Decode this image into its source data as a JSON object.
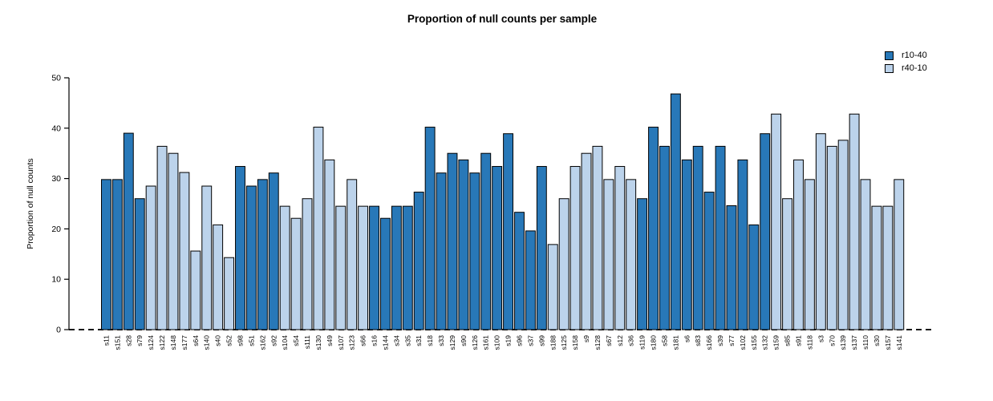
{
  "chart_data": {
    "type": "bar",
    "title": "Proportion of null counts per sample",
    "xlabel": "",
    "ylabel": "Proportion of null counts",
    "ylim": [
      0,
      50
    ],
    "yticks": [
      0,
      10,
      20,
      30,
      40,
      50
    ],
    "grid": false,
    "legend_position": "top-right",
    "baseline_style": "dashed",
    "legend": [
      {
        "label": "r10-40",
        "color": "#2878B8"
      },
      {
        "label": "r40-10",
        "color": "#BCD3EB"
      }
    ],
    "categories": [
      "s11",
      "s151",
      "s28",
      "s79",
      "s124",
      "s122",
      "s148",
      "s177",
      "s64",
      "s140",
      "s40",
      "s52",
      "s98",
      "s51",
      "s162",
      "s92",
      "s104",
      "s54",
      "s111",
      "s130",
      "s49",
      "s107",
      "s123",
      "s66",
      "s16",
      "s144",
      "s34",
      "s35",
      "s31",
      "s18",
      "s33",
      "s129",
      "s90",
      "s126",
      "s161",
      "s100",
      "s19",
      "s96",
      "s37",
      "s99",
      "s188",
      "s125",
      "s158",
      "s9",
      "s128",
      "s67",
      "s12",
      "s36",
      "s119",
      "s180",
      "s58",
      "s181",
      "s6",
      "s83",
      "s166",
      "s39",
      "s77",
      "s102",
      "s155",
      "s132",
      "s159",
      "s85",
      "s91",
      "s118",
      "s3",
      "s70",
      "s139",
      "s137",
      "s110",
      "s30",
      "s157",
      "s141"
    ],
    "groups": [
      "r10-40",
      "r10-40",
      "r10-40",
      "r10-40",
      "r40-10",
      "r40-10",
      "r40-10",
      "r40-10",
      "r40-10",
      "r40-10",
      "r40-10",
      "r40-10",
      "r10-40",
      "r10-40",
      "r10-40",
      "r10-40",
      "r40-10",
      "r40-10",
      "r40-10",
      "r40-10",
      "r40-10",
      "r40-10",
      "r40-10",
      "r40-10",
      "r10-40",
      "r10-40",
      "r10-40",
      "r10-40",
      "r10-40",
      "r10-40",
      "r10-40",
      "r10-40",
      "r10-40",
      "r10-40",
      "r10-40",
      "r10-40",
      "r10-40",
      "r10-40",
      "r10-40",
      "r10-40",
      "r40-10",
      "r40-10",
      "r40-10",
      "r40-10",
      "r40-10",
      "r40-10",
      "r40-10",
      "r40-10",
      "r10-40",
      "r10-40",
      "r10-40",
      "r10-40",
      "r10-40",
      "r10-40",
      "r10-40",
      "r10-40",
      "r10-40",
      "r10-40",
      "r10-40",
      "r10-40",
      "r40-10",
      "r40-10",
      "r40-10",
      "r40-10",
      "r40-10",
      "r40-10",
      "r40-10",
      "r40-10",
      "r40-10",
      "r40-10",
      "r40-10",
      "r40-10"
    ],
    "values": [
      29.8,
      29.8,
      39.0,
      26.0,
      28.5,
      36.4,
      35.0,
      31.2,
      15.6,
      28.5,
      20.8,
      14.3,
      32.4,
      28.5,
      29.8,
      31.1,
      24.5,
      22.1,
      26.0,
      40.2,
      33.7,
      24.5,
      29.8,
      24.5,
      24.5,
      22.1,
      24.5,
      24.5,
      27.3,
      40.2,
      31.1,
      35.0,
      33.7,
      31.1,
      35.0,
      32.4,
      38.9,
      23.3,
      19.6,
      32.4,
      16.9,
      26.0,
      32.4,
      35.0,
      36.4,
      29.8,
      32.4,
      29.8,
      26.0,
      40.2,
      36.4,
      46.8,
      33.7,
      36.4,
      27.3,
      36.4,
      24.6,
      33.7,
      20.8,
      38.9,
      42.8,
      26.0,
      33.7,
      29.8,
      38.9,
      36.4,
      37.6,
      42.8,
      29.8,
      24.5,
      24.5,
      29.8
    ]
  }
}
